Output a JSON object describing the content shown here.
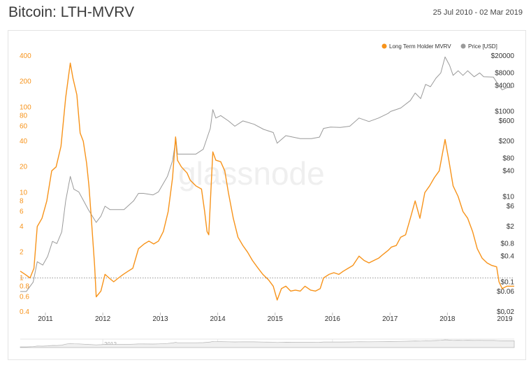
{
  "header": {
    "title": "Bitcoin: LTH-MVRV",
    "date_range": "25 Jul 2010 - 02 Mar 2019"
  },
  "watermark": "glassnode",
  "colors": {
    "lth": "#f7931a",
    "price": "#9a9a9a",
    "ref_line": "#888888"
  },
  "chart_data": {
    "type": "line",
    "title": "Bitcoin: LTH-MVRV",
    "x_ticks": [
      "2011",
      "2012",
      "2013",
      "2014",
      "2015",
      "2016",
      "2017",
      "2018",
      "2019"
    ],
    "xlim": [
      "2010-07-25",
      "2019-03-02"
    ],
    "left_axis": {
      "scale": "log",
      "range": [
        0.4,
        400
      ],
      "ticks": [
        0.4,
        0.6,
        0.8,
        1,
        2,
        4,
        6,
        8,
        10,
        20,
        40,
        60,
        80,
        100,
        200,
        400
      ],
      "tick_labels": [
        "0.4",
        "0.6",
        "0.8",
        "1",
        "2",
        "4",
        "6",
        "8",
        "10",
        "20",
        "40",
        "60",
        "80",
        "100",
        "200",
        "400"
      ],
      "color": "#f7931a"
    },
    "right_axis": {
      "scale": "log",
      "range": [
        0.02,
        20000
      ],
      "ticks": [
        0.02,
        0.06,
        0.1,
        0.4,
        0.8,
        2,
        6,
        10,
        40,
        80,
        200,
        600,
        1000,
        4000,
        8000,
        20000
      ],
      "tick_labels": [
        "$0.02",
        "$0.06",
        "$0.1",
        "$0.4",
        "$0.8",
        "$2",
        "$6",
        "$10",
        "$40",
        "$80",
        "$200",
        "$600",
        "$1000",
        "$4000",
        "$8000",
        "$20000"
      ],
      "color": "#333333"
    },
    "reference_line": {
      "axis": "left",
      "value": 1,
      "style": "dotted"
    },
    "legend": {
      "position": "top-right"
    },
    "grid": false,
    "series": [
      {
        "name": "Long Term Holder MVRV",
        "axis": "left",
        "color": "#f7931a",
        "points": [
          [
            "2010-07-25",
            1.2
          ],
          [
            "2010-08-25",
            1.1
          ],
          [
            "2010-09-25",
            1.0
          ],
          [
            "2010-10-20",
            1.3
          ],
          [
            "2010-11-10",
            4
          ],
          [
            "2010-12-10",
            5
          ],
          [
            "2011-01-10",
            8
          ],
          [
            "2011-02-10",
            18
          ],
          [
            "2011-03-10",
            20
          ],
          [
            "2011-04-10",
            35
          ],
          [
            "2011-05-10",
            130
          ],
          [
            "2011-06-08",
            330
          ],
          [
            "2011-06-25",
            220
          ],
          [
            "2011-07-20",
            140
          ],
          [
            "2011-08-10",
            50
          ],
          [
            "2011-08-30",
            40
          ],
          [
            "2011-09-20",
            22
          ],
          [
            "2011-10-05",
            12
          ],
          [
            "2011-10-20",
            5
          ],
          [
            "2011-11-10",
            1.4
          ],
          [
            "2011-11-20",
            0.6
          ],
          [
            "2011-12-20",
            0.7
          ],
          [
            "2012-01-15",
            1.1
          ],
          [
            "2012-02-10",
            1.0
          ],
          [
            "2012-03-10",
            0.9
          ],
          [
            "2012-04-10",
            1.0
          ],
          [
            "2012-05-10",
            1.1
          ],
          [
            "2012-06-10",
            1.2
          ],
          [
            "2012-07-10",
            1.3
          ],
          [
            "2012-08-15",
            2.2
          ],
          [
            "2012-09-20",
            2.5
          ],
          [
            "2012-10-20",
            2.7
          ],
          [
            "2012-11-20",
            2.5
          ],
          [
            "2012-12-20",
            2.7
          ],
          [
            "2013-01-20",
            3.5
          ],
          [
            "2013-02-20",
            6
          ],
          [
            "2013-03-20",
            15
          ],
          [
            "2013-04-08",
            45
          ],
          [
            "2013-04-20",
            24
          ],
          [
            "2013-05-15",
            20
          ],
          [
            "2013-06-20",
            17
          ],
          [
            "2013-07-10",
            14
          ],
          [
            "2013-08-15",
            12
          ],
          [
            "2013-09-20",
            11
          ],
          [
            "2013-10-10",
            6
          ],
          [
            "2013-10-25",
            3.5
          ],
          [
            "2013-11-05",
            3.2
          ],
          [
            "2013-11-20",
            12
          ],
          [
            "2013-12-01",
            30
          ],
          [
            "2013-12-20",
            24
          ],
          [
            "2014-01-20",
            23
          ],
          [
            "2014-02-15",
            18
          ],
          [
            "2014-03-10",
            10
          ],
          [
            "2014-04-10",
            5
          ],
          [
            "2014-05-10",
            3
          ],
          [
            "2014-06-10",
            2.4
          ],
          [
            "2014-07-10",
            2.0
          ],
          [
            "2014-08-10",
            1.6
          ],
          [
            "2014-09-15",
            1.3
          ],
          [
            "2014-10-15",
            1.1
          ],
          [
            "2014-11-20",
            0.95
          ],
          [
            "2014-12-20",
            0.8
          ],
          [
            "2015-01-14",
            0.55
          ],
          [
            "2015-02-10",
            0.75
          ],
          [
            "2015-03-10",
            0.8
          ],
          [
            "2015-04-10",
            0.7
          ],
          [
            "2015-05-10",
            0.72
          ],
          [
            "2015-06-10",
            0.7
          ],
          [
            "2015-07-10",
            0.8
          ],
          [
            "2015-08-15",
            0.72
          ],
          [
            "2015-09-15",
            0.7
          ],
          [
            "2015-10-15",
            0.75
          ],
          [
            "2015-11-05",
            1.0
          ],
          [
            "2015-12-10",
            1.1
          ],
          [
            "2016-01-10",
            1.15
          ],
          [
            "2016-02-10",
            1.1
          ],
          [
            "2016-03-10",
            1.2
          ],
          [
            "2016-04-10",
            1.3
          ],
          [
            "2016-05-10",
            1.4
          ],
          [
            "2016-06-18",
            1.8
          ],
          [
            "2016-07-20",
            1.6
          ],
          [
            "2016-08-20",
            1.5
          ],
          [
            "2016-09-20",
            1.6
          ],
          [
            "2016-10-20",
            1.7
          ],
          [
            "2016-11-20",
            1.9
          ],
          [
            "2016-12-20",
            2.1
          ],
          [
            "2017-01-10",
            2.3
          ],
          [
            "2017-02-10",
            2.4
          ],
          [
            "2017-03-10",
            3.0
          ],
          [
            "2017-04-10",
            3.2
          ],
          [
            "2017-05-10",
            5
          ],
          [
            "2017-06-10",
            8
          ],
          [
            "2017-07-10",
            5
          ],
          [
            "2017-08-10",
            10
          ],
          [
            "2017-09-10",
            12
          ],
          [
            "2017-10-10",
            15
          ],
          [
            "2017-11-10",
            18
          ],
          [
            "2017-12-17",
            42
          ],
          [
            "2018-01-10",
            24
          ],
          [
            "2018-02-06",
            12
          ],
          [
            "2018-03-10",
            9
          ],
          [
            "2018-04-10",
            6
          ],
          [
            "2018-05-10",
            5
          ],
          [
            "2018-06-10",
            3.5
          ],
          [
            "2018-07-10",
            2.2
          ],
          [
            "2018-08-10",
            1.7
          ],
          [
            "2018-09-10",
            1.5
          ],
          [
            "2018-10-10",
            1.4
          ],
          [
            "2018-11-10",
            1.35
          ],
          [
            "2018-11-25",
            0.9
          ],
          [
            "2018-12-15",
            0.75
          ],
          [
            "2019-01-15",
            0.8
          ],
          [
            "2019-02-15",
            0.8
          ],
          [
            "2019-03-02",
            0.8
          ]
        ]
      },
      {
        "name": "Price [USD]",
        "axis": "right",
        "color": "#9a9a9a",
        "points": [
          [
            "2010-07-25",
            0.06
          ],
          [
            "2010-09-01",
            0.06
          ],
          [
            "2010-10-15",
            0.1
          ],
          [
            "2010-11-10",
            0.3
          ],
          [
            "2010-12-15",
            0.25
          ],
          [
            "2011-01-15",
            0.4
          ],
          [
            "2011-02-15",
            0.9
          ],
          [
            "2011-03-15",
            0.8
          ],
          [
            "2011-04-15",
            1.5
          ],
          [
            "2011-05-10",
            8
          ],
          [
            "2011-06-08",
            30
          ],
          [
            "2011-07-01",
            15
          ],
          [
            "2011-08-01",
            13
          ],
          [
            "2011-09-01",
            8
          ],
          [
            "2011-10-01",
            5
          ],
          [
            "2011-11-20",
            2.5
          ],
          [
            "2011-12-20",
            3.5
          ],
          [
            "2012-01-15",
            6
          ],
          [
            "2012-02-15",
            5
          ],
          [
            "2012-03-15",
            5
          ],
          [
            "2012-05-15",
            5
          ],
          [
            "2012-07-15",
            8
          ],
          [
            "2012-08-15",
            12
          ],
          [
            "2012-09-15",
            12
          ],
          [
            "2012-11-15",
            11
          ],
          [
            "2012-12-20",
            13
          ],
          [
            "2013-02-15",
            30
          ],
          [
            "2013-03-20",
            70
          ],
          [
            "2013-04-10",
            230
          ],
          [
            "2013-04-20",
            100
          ],
          [
            "2013-06-20",
            100
          ],
          [
            "2013-08-15",
            100
          ],
          [
            "2013-10-01",
            130
          ],
          [
            "2013-11-15",
            400
          ],
          [
            "2013-12-01",
            1100
          ],
          [
            "2013-12-20",
            700
          ],
          [
            "2014-01-20",
            800
          ],
          [
            "2014-03-10",
            600
          ],
          [
            "2014-04-20",
            450
          ],
          [
            "2014-06-10",
            600
          ],
          [
            "2014-08-20",
            500
          ],
          [
            "2014-10-20",
            380
          ],
          [
            "2014-12-20",
            320
          ],
          [
            "2015-01-14",
            180
          ],
          [
            "2015-03-10",
            270
          ],
          [
            "2015-06-10",
            230
          ],
          [
            "2015-08-20",
            230
          ],
          [
            "2015-10-10",
            250
          ],
          [
            "2015-11-05",
            400
          ],
          [
            "2015-12-20",
            430
          ],
          [
            "2016-02-20",
            420
          ],
          [
            "2016-04-20",
            450
          ],
          [
            "2016-06-18",
            700
          ],
          [
            "2016-08-20",
            580
          ],
          [
            "2016-10-20",
            700
          ],
          [
            "2016-12-20",
            900
          ],
          [
            "2017-01-05",
            1000
          ],
          [
            "2017-03-10",
            1200
          ],
          [
            "2017-05-10",
            1800
          ],
          [
            "2017-06-10",
            2700
          ],
          [
            "2017-07-15",
            2000
          ],
          [
            "2017-08-15",
            4300
          ],
          [
            "2017-09-15",
            3800
          ],
          [
            "2017-10-20",
            6000
          ],
          [
            "2017-11-20",
            8000
          ],
          [
            "2017-12-17",
            19000
          ],
          [
            "2018-01-15",
            12000
          ],
          [
            "2018-02-06",
            7000
          ],
          [
            "2018-03-10",
            9000
          ],
          [
            "2018-04-10",
            7000
          ],
          [
            "2018-05-10",
            9000
          ],
          [
            "2018-06-20",
            6500
          ],
          [
            "2018-07-25",
            8000
          ],
          [
            "2018-08-20",
            6500
          ],
          [
            "2018-10-20",
            6400
          ],
          [
            "2018-11-20",
            4300
          ],
          [
            "2018-12-15",
            3200
          ],
          [
            "2019-01-15",
            3600
          ],
          [
            "2019-02-15",
            3600
          ],
          [
            "2019-03-02",
            3800
          ]
        ]
      }
    ]
  },
  "navigator": {
    "labels": [
      "2012",
      "2014",
      "2016",
      "2018"
    ]
  }
}
